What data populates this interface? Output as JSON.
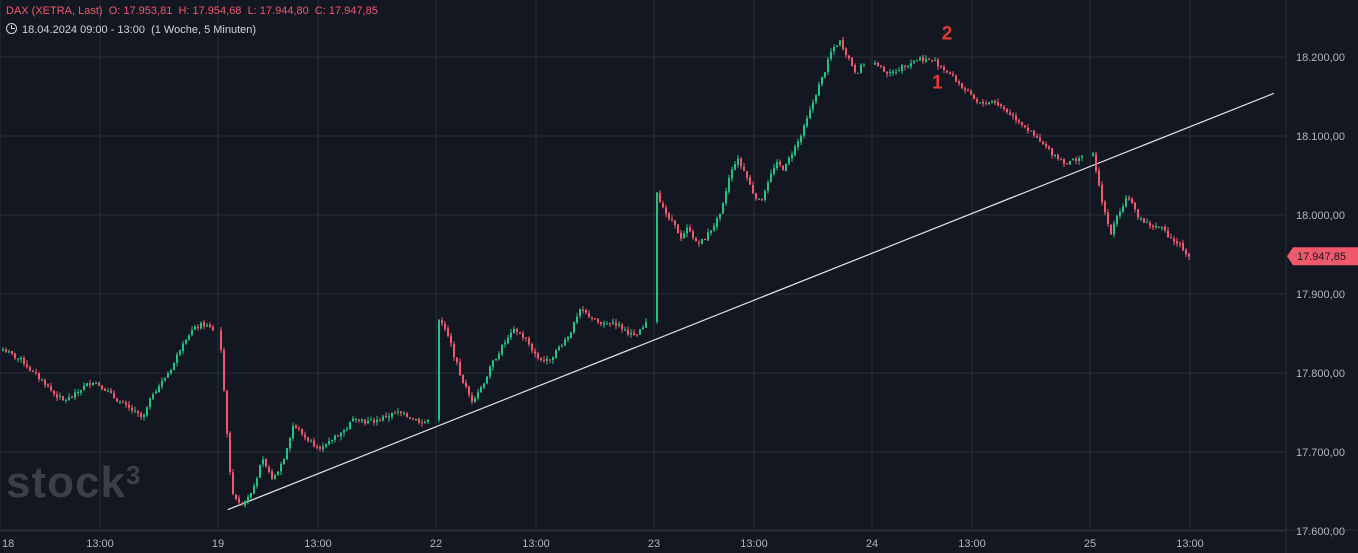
{
  "header": {
    "symbol": "DAX (XETRA, Last)",
    "open": "O: 17.953,81",
    "high": "H: 17.954,68",
    "low": "L: 17.944,80",
    "close": "C: 17.947,85",
    "range": "18.04.2024 09:00 - 13:00",
    "period": "(1 Woche, 5 Minuten)"
  },
  "logo": {
    "text": "stock",
    "sup": "3"
  },
  "colors": {
    "background": "#131722",
    "up": "#26c281",
    "down": "#f0596b",
    "grid": "#2a2e39",
    "axis_text": "#b2b5be",
    "trendline": "#e6e6e6",
    "annotation": "#e53935"
  },
  "chart_data": {
    "type": "candlestick",
    "title": "DAX (XETRA, Last)",
    "interval": "5 Minuten",
    "ylim": [
      17600,
      18300
    ],
    "y_ticks": [
      "18.200,00",
      "18.100,00",
      "18.000,00",
      "17.900,00",
      "17.800,00",
      "17.700,00",
      "17.600,00"
    ],
    "y_tick_values": [
      18200,
      18100,
      18000,
      17900,
      17800,
      17700,
      17600
    ],
    "x_ticks": [
      "18",
      "13:00",
      "19",
      "13:00",
      "22",
      "13:00",
      "23",
      "13:00",
      "24",
      "13:00",
      "25",
      "13:00"
    ],
    "last_price": 17947.85,
    "last_price_label": "17.947,85",
    "grid": true,
    "price_path": [
      {
        "session": "18",
        "points": [
          17830,
          17822,
          17815,
          17800,
          17790,
          17775,
          17765,
          17770,
          17782,
          17790,
          17782,
          17770,
          17760,
          17752,
          17742,
          17775,
          17790,
          17810,
          17840,
          17855,
          17862,
          17855
        ]
      },
      {
        "session": "19",
        "points": [
          17830,
          17650,
          17632,
          17650,
          17690,
          17665,
          17690,
          17735,
          17720,
          17710,
          17705,
          17720,
          17728,
          17745,
          17738,
          17740,
          17745,
          17750,
          17745,
          17740,
          17738
        ]
      },
      {
        "session": "22",
        "points": [
          17870,
          17840,
          17795,
          17765,
          17785,
          17815,
          17838,
          17855,
          17842,
          17820,
          17815,
          17832,
          17850,
          17880,
          17870,
          17860,
          17865,
          17855,
          17845,
          17862
        ]
      },
      {
        "session": "23",
        "points": [
          18030,
          18000,
          17990,
          17972,
          17985,
          17962,
          17970,
          17985,
          18000,
          18045,
          18072,
          18055,
          18030,
          18015,
          18045,
          18065,
          18058,
          18080,
          18098,
          18125,
          18155,
          18180,
          18210,
          18220,
          18200,
          18180,
          18192
        ]
      },
      {
        "session": "24",
        "points": [
          18192,
          18178,
          18190,
          18198,
          18195,
          18180,
          18160,
          18140,
          18145,
          18130,
          18115,
          18095,
          18078,
          18065,
          18075
        ]
      },
      {
        "session": "25",
        "points": [
          18075,
          18020,
          17975,
          18005,
          18025,
          18000,
          17990,
          17985,
          17982,
          17970,
          17962,
          17948
        ]
      }
    ],
    "annotations": [
      {
        "text": "1",
        "x_session": "24",
        "x_offset_hours": 2.7,
        "y": 18160
      },
      {
        "text": "2",
        "x_session": "24",
        "x_offset_hours": 3.1,
        "y": 18222
      }
    ],
    "trendline": {
      "from": {
        "session": "19",
        "offset_hours": 0.4,
        "y": 17627
      },
      "to": {
        "session": "25",
        "offset_hours": 7.6,
        "y": 18154
      }
    }
  }
}
